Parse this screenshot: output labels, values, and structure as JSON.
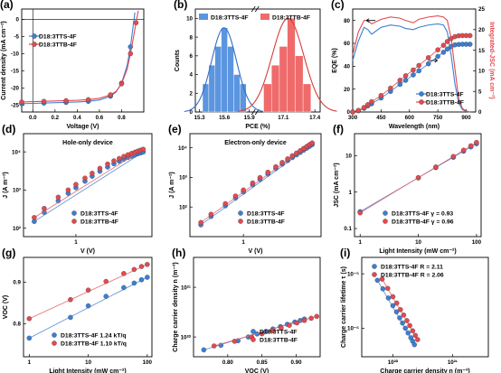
{
  "colors": {
    "blue": "#3b7fd4",
    "red": "#e24a4f",
    "blue_fit": "#5a8fd8",
    "red_fit": "#e66a6e",
    "hist_blue": "#5b95e0",
    "hist_red": "#ef6b6b"
  },
  "chart_data": [
    {
      "panel": "(a)",
      "type": "line",
      "xlabel": "Voltage (V)",
      "ylabel": "Current density (mA cm⁻²)",
      "xlim": [
        -0.1,
        1.0
      ],
      "ylim": [
        -27,
        3
      ],
      "x_ticks": [
        "0.0",
        "0.2",
        "0.4",
        "0.6",
        "0.8"
      ],
      "y_ticks": [
        "0",
        "-5",
        "-10",
        "-15",
        "-20",
        "-25"
      ],
      "legend": "top-left",
      "series": [
        {
          "name": "D18:3TTS-4F",
          "color": "blue",
          "x": [
            -0.1,
            0.0,
            0.1,
            0.2,
            0.3,
            0.4,
            0.5,
            0.6,
            0.7,
            0.75,
            0.8,
            0.85,
            0.88,
            0.9,
            0.92
          ],
          "y": [
            -24.6,
            -24.5,
            -24.4,
            -24.3,
            -24.2,
            -24.1,
            -23.9,
            -23.5,
            -22.4,
            -21.2,
            -18.6,
            -13.5,
            -8.0,
            -3.0,
            2.0
          ]
        },
        {
          "name": "D18:3TTB-4F",
          "color": "red",
          "x": [
            -0.1,
            0.0,
            0.1,
            0.2,
            0.3,
            0.4,
            0.5,
            0.6,
            0.7,
            0.75,
            0.8,
            0.85,
            0.88,
            0.9,
            0.93,
            0.95
          ],
          "y": [
            -24.1,
            -24.0,
            -23.9,
            -23.8,
            -23.7,
            -23.6,
            -23.4,
            -23.0,
            -22.0,
            -21.0,
            -18.8,
            -14.5,
            -10.0,
            -6.5,
            -1.0,
            2.5
          ]
        }
      ]
    },
    {
      "panel": "(b)",
      "type": "bar",
      "xlabel": "PCE (%)",
      "ylabel": "Counts",
      "ylim": [
        0,
        11
      ],
      "y_ticks": [
        "0",
        "2",
        "4",
        "6",
        "8",
        "10"
      ],
      "x_ticks_left": [
        "15.3",
        "15.6",
        "15.9"
      ],
      "x_ticks_right": [
        "17.1",
        "17.4"
      ],
      "legend": "top",
      "series": [
        {
          "name": "D18:3TTS-4F",
          "color": "hist_blue",
          "bins": [
            15.375,
            15.45,
            15.525,
            15.6,
            15.675,
            15.75,
            15.825
          ],
          "counts": [
            3,
            5,
            7,
            9,
            7,
            4,
            3
          ]
        },
        {
          "name": "D18:3TTB-4F",
          "color": "hist_red",
          "bins": [
            16.95,
            17.025,
            17.1,
            17.175,
            17.25,
            17.325
          ],
          "counts": [
            3,
            5,
            7,
            10,
            6,
            3
          ]
        }
      ]
    },
    {
      "panel": "(c)",
      "type": "line",
      "xlabel": "Wavelength (nm)",
      "ylabel": "EQE (%)",
      "ylabel_right": "Integrated-J<sub>SC</sub> (mA cm⁻²)",
      "xlim": [
        300,
        950
      ],
      "ylim": [
        0,
        90
      ],
      "ylim_right": [
        0,
        25
      ],
      "x_ticks": [
        "300",
        "450",
        "600",
        "750",
        "900"
      ],
      "y_ticks": [
        "0",
        "20",
        "40",
        "60",
        "80"
      ],
      "y_ticks_right": [
        "0",
        "5",
        "10",
        "15",
        "20",
        "25"
      ],
      "legend": "bottom-right",
      "series": [
        {
          "name": "D18:3TTS-4F",
          "color": "blue",
          "x": [
            300,
            330,
            360,
            380,
            400,
            450,
            500,
            550,
            580,
            620,
            650,
            700,
            750,
            780,
            800,
            820,
            840,
            860,
            880,
            900,
            920
          ],
          "eqe": [
            45,
            62,
            74,
            72,
            68,
            74,
            76,
            75,
            73,
            72,
            74,
            76,
            77,
            76,
            70,
            50,
            25,
            8,
            2,
            0.5,
            0
          ],
          "jsc": [
            0,
            0.3,
            0.9,
            1.5,
            2.0,
            3.4,
            5.0,
            6.7,
            7.7,
            9.0,
            10.0,
            11.7,
            13.5,
            14.5,
            15.3,
            15.9,
            16.3,
            16.4,
            16.45,
            16.45,
            16.45
          ]
        },
        {
          "name": "D18:3TTB-4F",
          "color": "red",
          "x": [
            300,
            330,
            360,
            380,
            400,
            450,
            500,
            550,
            580,
            620,
            650,
            700,
            750,
            780,
            800,
            820,
            840,
            860,
            880,
            900,
            920
          ],
          "eqe": [
            50,
            70,
            80,
            80,
            77,
            81,
            83,
            82,
            80,
            78,
            81,
            83,
            84,
            83,
            80,
            65,
            38,
            12,
            3,
            1,
            0
          ],
          "jsc": [
            0,
            0.4,
            1.1,
            1.8,
            2.5,
            4.0,
            5.8,
            7.7,
            8.8,
            10.2,
            11.3,
            13.2,
            15.1,
            16.2,
            17.1,
            17.8,
            18.3,
            18.5,
            18.55,
            18.55,
            18.55
          ]
        }
      ]
    },
    {
      "panel": "(d)",
      "type": "scatter",
      "title": "Hole-only device",
      "xlabel": "V (V)",
      "ylabel": "J (A m⁻²)",
      "x_scale": "log",
      "y_scale": "log",
      "x_ticks": [
        "1"
      ],
      "y_ticks": [
        "10²",
        "10³",
        "10⁴"
      ],
      "legend": "bottom-right",
      "series": [
        {
          "name": "D18:3TTS-4F",
          "color": "blue",
          "x": [
            0.3,
            0.4,
            0.6,
            0.8,
            1.0,
            1.3,
            1.6,
            2.0,
            2.5,
            3.0,
            3.5,
            4.0,
            4.5,
            5.0,
            5.5,
            6.0,
            6.5,
            7.0
          ],
          "y": [
            150,
            260,
            520,
            820,
            1150,
            1700,
            2300,
            3100,
            4000,
            4900,
            5700,
            6400,
            7100,
            7700,
            8300,
            8900,
            9400,
            9900
          ]
        },
        {
          "name": "D18:3TTB-4F",
          "color": "red",
          "x": [
            0.3,
            0.4,
            0.6,
            0.8,
            1.0,
            1.3,
            1.6,
            2.0,
            2.5,
            3.0,
            3.5,
            4.0,
            4.5,
            5.0,
            5.5,
            6.0,
            6.5,
            7.0
          ],
          "y": [
            190,
            330,
            650,
            1000,
            1400,
            2050,
            2750,
            3700,
            4800,
            5800,
            6700,
            7600,
            8400,
            9100,
            9800,
            10500,
            11100,
            11700
          ]
        }
      ]
    },
    {
      "panel": "(e)",
      "type": "scatter",
      "title": "Electron-only device",
      "xlabel": "V (V)",
      "ylabel": "J (A m⁻²)",
      "x_scale": "log",
      "y_scale": "log",
      "x_ticks": [
        "1"
      ],
      "y_ticks": [
        "10²",
        "10³",
        "10⁴"
      ],
      "legend": "bottom-right",
      "series": [
        {
          "name": "D18:3TTS-4F",
          "color": "blue",
          "x": [
            0.3,
            0.4,
            0.6,
            0.8,
            1.0,
            1.3,
            1.6,
            2.0,
            2.5,
            3.0,
            3.5,
            4.0,
            4.5,
            5.0,
            5.5,
            6.0,
            6.5,
            7.0
          ],
          "y": [
            25,
            48,
            110,
            200,
            320,
            560,
            850,
            1300,
            2000,
            2800,
            3700,
            4700,
            5800,
            7000,
            8300,
            9700,
            11200,
            12800
          ]
        },
        {
          "name": "D18:3TTB-4F",
          "color": "red",
          "x": [
            0.3,
            0.4,
            0.6,
            0.8,
            1.0,
            1.3,
            1.6,
            2.0,
            2.5,
            3.0,
            3.5,
            4.0,
            4.5,
            5.0,
            5.5,
            6.0,
            6.5,
            7.0
          ],
          "y": [
            30,
            57,
            130,
            235,
            375,
            650,
            990,
            1500,
            2300,
            3200,
            4250,
            5400,
            6650,
            8000,
            9500,
            11100,
            12800,
            14600
          ]
        }
      ]
    },
    {
      "panel": "(f)",
      "type": "scatter",
      "xlabel": "Light Intensity (mW cm⁻²)",
      "ylabel": "J<sub>SC</sub> (mA cm⁻²)",
      "x_scale": "log",
      "y_scale": "log",
      "x_ticks": [
        "1",
        "10",
        "100"
      ],
      "y_ticks": [
        "0.1",
        "1",
        "10"
      ],
      "legend": "bottom-right",
      "series": [
        {
          "name": "D18:3TTS-4F",
          "gamma": "0.93",
          "color": "blue",
          "x": [
            1,
            10,
            20,
            40,
            60,
            80,
            100
          ],
          "y": [
            0.29,
            2.45,
            4.7,
            9.0,
            13.2,
            17.3,
            21.2
          ]
        },
        {
          "name": "D18:3TTB-4F",
          "gamma": "0.96",
          "color": "red",
          "x": [
            1,
            10,
            20,
            40,
            60,
            80,
            100
          ],
          "y": [
            0.27,
            2.5,
            4.9,
            9.5,
            14.1,
            18.6,
            23.0
          ]
        }
      ]
    },
    {
      "panel": "(g)",
      "type": "scatter",
      "xlabel": "Light Intensity (mW cm⁻²)",
      "ylabel": "V<sub>OC</sub> (V)",
      "x_scale": "log",
      "ylim": [
        0.72,
        0.96
      ],
      "x_ticks": [
        "1",
        "10",
        "100"
      ],
      "y_ticks": [
        "0.8",
        "0.9"
      ],
      "legend": "bottom-right",
      "series": [
        {
          "name": "D18:3TTS-4F",
          "slope": "1.24 kT/q",
          "color": "blue",
          "x": [
            1,
            5,
            10,
            20,
            40,
            60,
            80,
            100
          ],
          "y": [
            0.765,
            0.815,
            0.843,
            0.866,
            0.887,
            0.898,
            0.906,
            0.912
          ]
        },
        {
          "name": "D18:3TTB-4F",
          "slope": "1.10 kT/q",
          "color": "red",
          "x": [
            1,
            5,
            10,
            20,
            40,
            60,
            80,
            100
          ],
          "y": [
            0.812,
            0.858,
            0.881,
            0.902,
            0.921,
            0.931,
            0.938,
            0.943
          ]
        }
      ]
    },
    {
      "panel": "(h)",
      "type": "scatter",
      "xlabel": "V<sub>OC</sub> (V)",
      "ylabel": "Charge carrier density n (m⁻³)",
      "y_scale": "log",
      "xlim": [
        0.75,
        0.93
      ],
      "x_ticks": [
        "0.80",
        "0.85",
        "0.90"
      ],
      "y_ticks": [
        "10²⁰",
        "10²¹"
      ],
      "legend": "bottom-right",
      "series": [
        {
          "name": "D18:3TTS-4F",
          "color": "blue",
          "x": [
            0.765,
            0.79,
            0.815,
            0.83,
            0.843,
            0.856,
            0.866,
            0.877,
            0.887,
            0.898,
            0.906,
            0.912
          ],
          "y": [
            5.5e+19,
            6.8e+19,
            8.4e+19,
            1e+20,
            1.15e+20,
            1.3e+20,
            1.45e+20,
            1.62e+20,
            1.8e+20,
            2e+20,
            2.15e+20,
            2.3e+20
          ]
        },
        {
          "name": "D18:3TTB-4F",
          "color": "red",
          "x": [
            0.78,
            0.81,
            0.835,
            0.85,
            0.865,
            0.878,
            0.89,
            0.901,
            0.912,
            0.922,
            0.93
          ],
          "y": [
            6.6e+19,
            8.2e+19,
            1e+20,
            1.16e+20,
            1.34e+20,
            1.52e+20,
            1.72e+20,
            1.92e+20,
            2.15e+20,
            2.38e+20,
            2.6e+20
          ]
        }
      ]
    },
    {
      "panel": "(i)",
      "type": "scatter",
      "xlabel": "Charge carrier density n (m⁻³)",
      "ylabel": "Charge carrier lifetime τ (s)",
      "x_scale": "log",
      "y_scale": "log",
      "x_ticks": [
        "10²⁰",
        "10²¹"
      ],
      "y_ticks": [
        "10⁻⁶",
        "10⁻⁵"
      ],
      "legend": "top-right",
      "series": [
        {
          "name": "D18:3TTS-4F",
          "R": "2.11",
          "color": "blue",
          "x": [
            5.5e+19,
            6.8e+19,
            8.4e+19,
            1e+20,
            1.15e+20,
            1.3e+20,
            1.45e+20,
            1.62e+20,
            1.8e+20,
            2e+20,
            2.15e+20,
            2.3e+20
          ],
          "y": [
            7.6e-06,
            5.3e-06,
            3.6e-06,
            2.6e-06,
            2e-06,
            1.55e-06,
            1.25e-06,
            1e-06,
            8.2e-07,
            6.7e-07,
            5.8e-07,
            5e-07
          ]
        },
        {
          "name": "D18:3TTB-4F",
          "R": "2.06",
          "color": "red",
          "x": [
            6.6e+19,
            8.2e+19,
            1e+20,
            1.16e+20,
            1.34e+20,
            1.52e+20,
            1.72e+20,
            1.92e+20,
            2.15e+20,
            2.38e+20,
            2.6e+20
          ],
          "y": [
            8e-06,
            5.4e-06,
            3.8e-06,
            2.9e-06,
            2.2e-06,
            1.75e-06,
            1.38e-06,
            1.12e-06,
            9e-07,
            7.4e-07,
            6.2e-07
          ]
        }
      ]
    }
  ]
}
